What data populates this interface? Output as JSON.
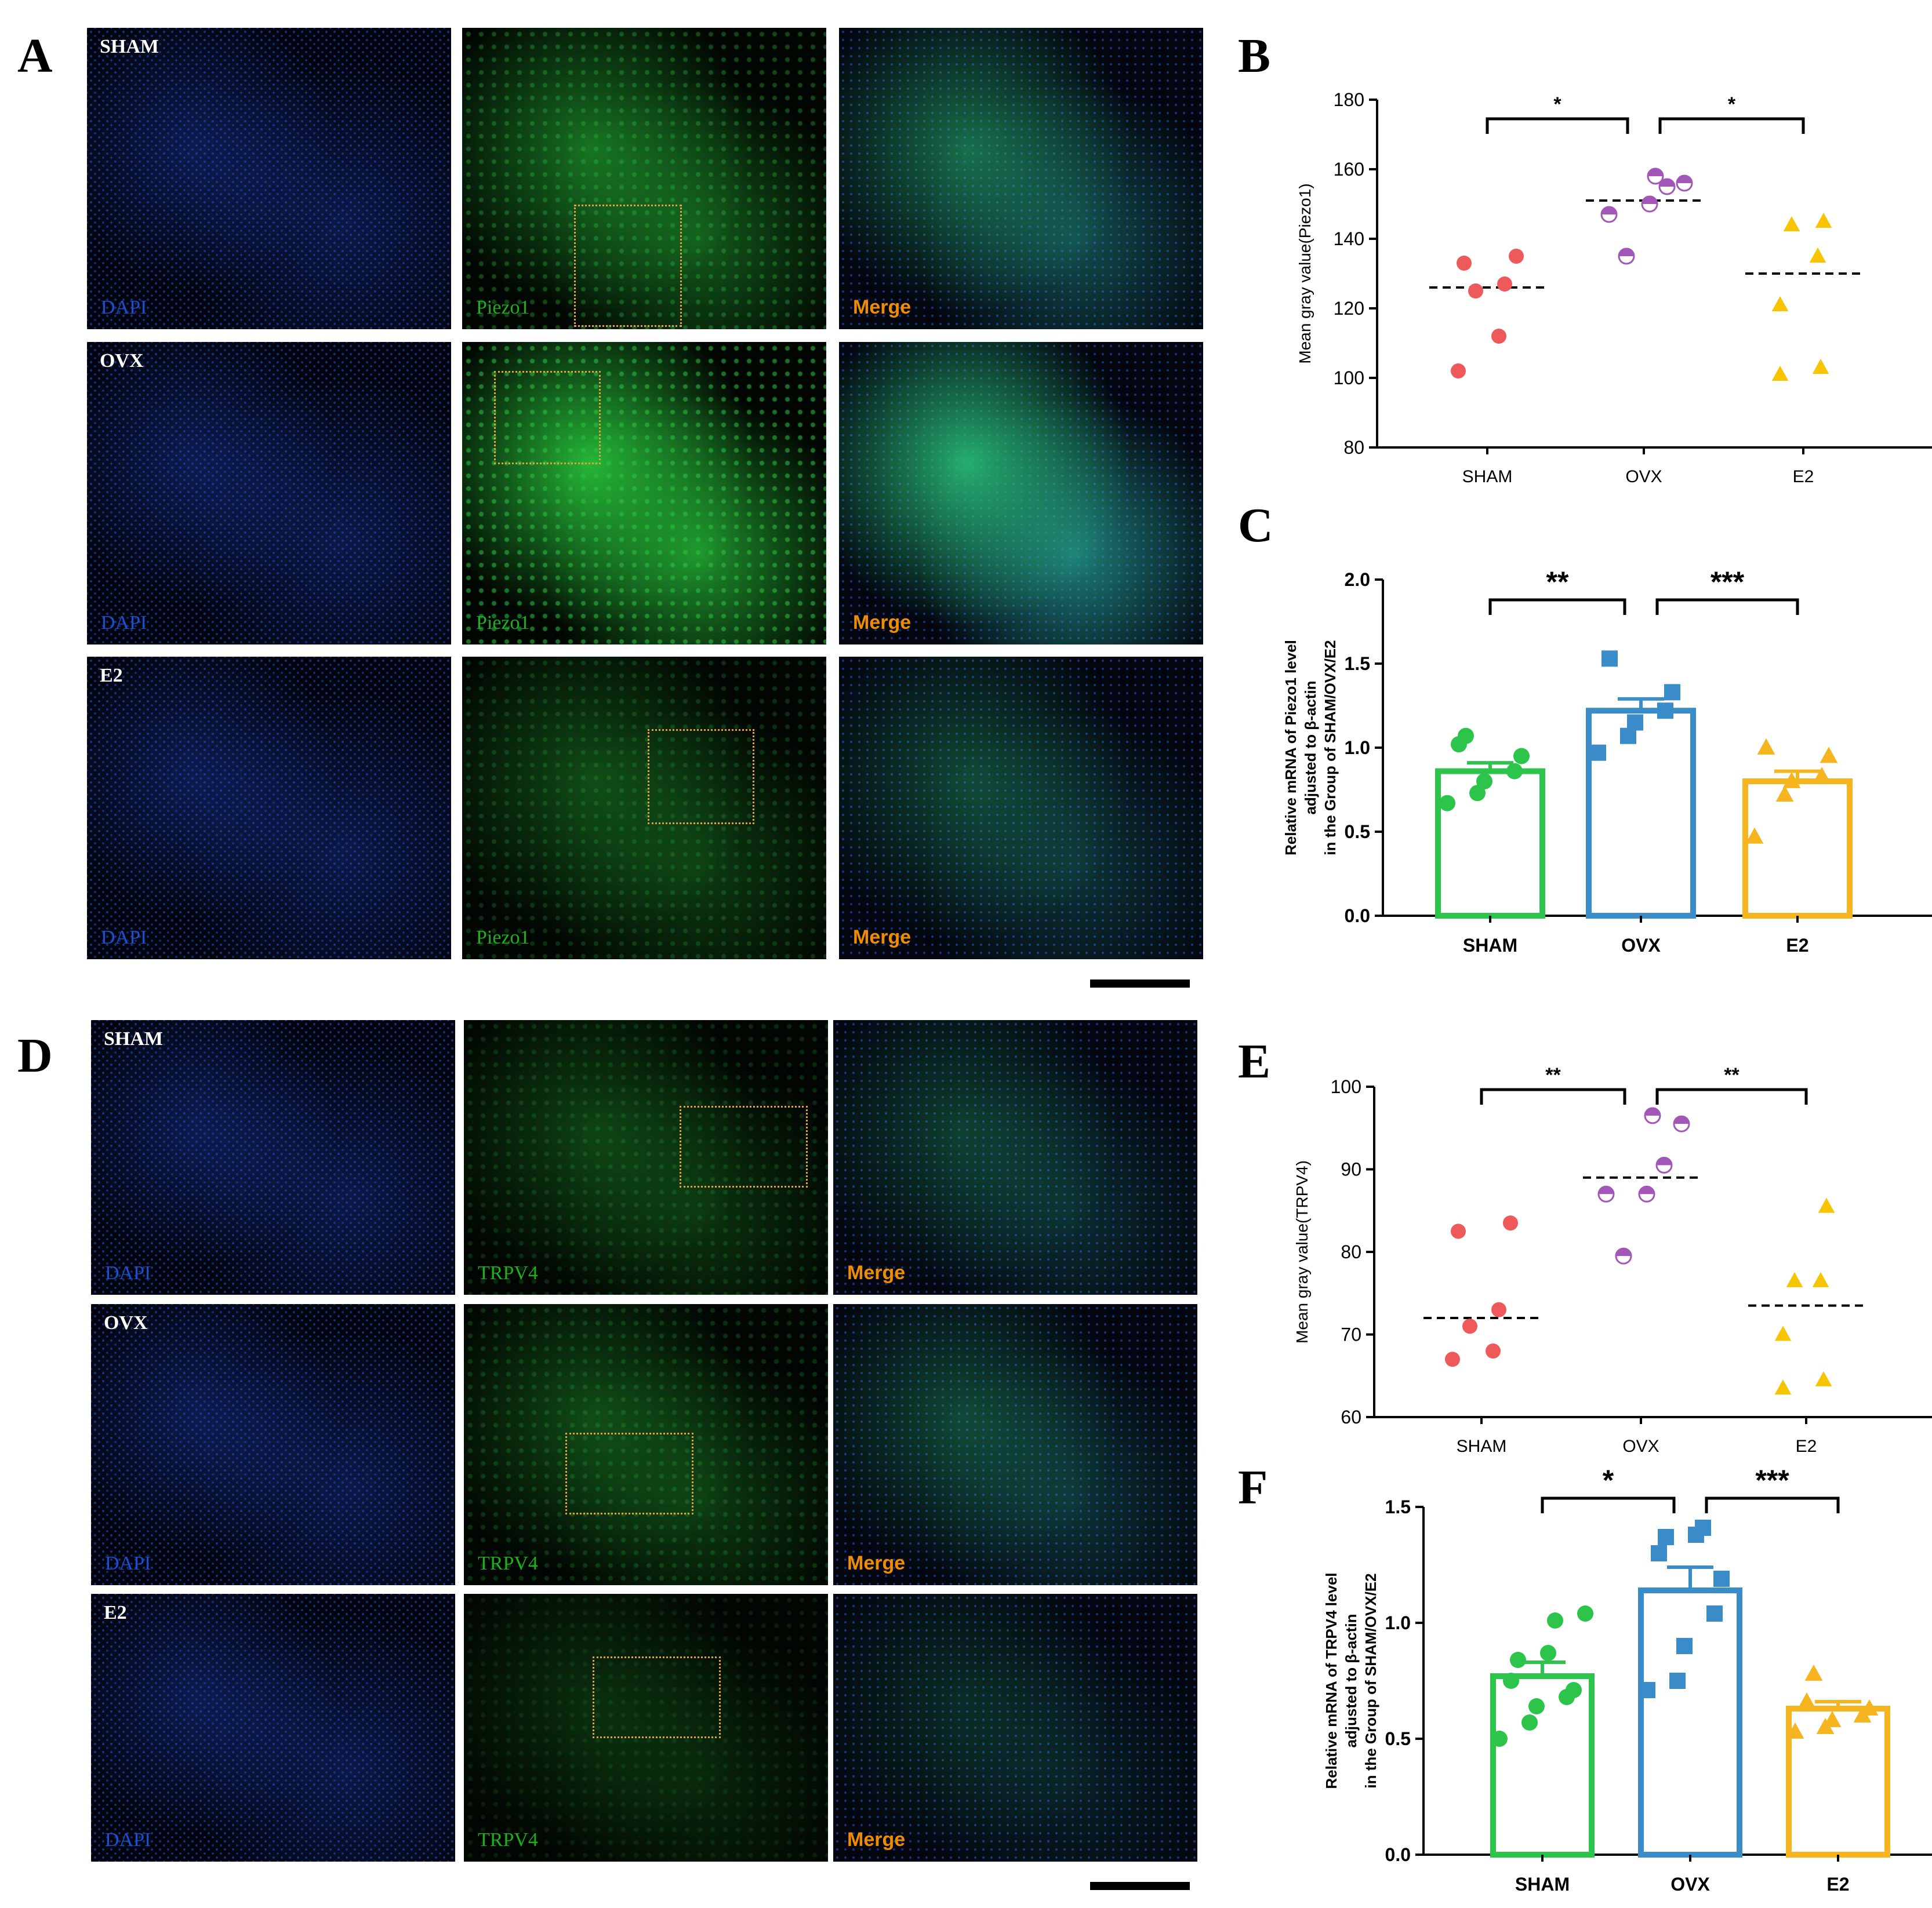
{
  "panel_labels": {
    "A": "A",
    "B": "B",
    "C": "C",
    "D": "D",
    "E": "E",
    "F": "F"
  },
  "colors": {
    "dapi": "#1a4fd0",
    "green": "#1db01d",
    "merge": "#f08c00",
    "sham_dot": "#ee5a5a",
    "ovx_dot": "#a156b8",
    "e2_dot": "#f6c500",
    "bar_sham": "#2cc44a",
    "bar_ovx": "#3a8dc8",
    "bar_e2": "#f6b41e",
    "roi": "#e8a13a"
  },
  "micrographs": {
    "piezo": {
      "rows": [
        {
          "group": "SHAM",
          "dapi": "DAPI",
          "marker": "Piezo1",
          "merge": "Merge"
        },
        {
          "group": "OVX",
          "dapi": "DAPI",
          "marker": "Piezo1",
          "merge": "Merge"
        },
        {
          "group": "E2",
          "dapi": "DAPI",
          "marker": "Piezo1",
          "merge": "Merge"
        }
      ]
    },
    "trpv4": {
      "rows": [
        {
          "group": "SHAM",
          "dapi": "DAPI",
          "marker": "TRPV4",
          "merge": "Merge"
        },
        {
          "group": "OVX",
          "dapi": "DAPI",
          "marker": "TRPV4",
          "merge": "Merge"
        },
        {
          "group": "E2",
          "dapi": "DAPI",
          "marker": "TRPV4",
          "merge": "Merge"
        }
      ]
    }
  },
  "chart_data": [
    {
      "id": "B",
      "type": "scatter",
      "ylabel": "Mean gray value(Piezo1)",
      "categories": [
        "SHAM",
        "OVX",
        "E2"
      ],
      "ylim": [
        80,
        180
      ],
      "yticks": [
        80,
        100,
        120,
        140,
        160,
        180
      ],
      "series": [
        {
          "values": [
            102,
            112,
            125,
            127,
            133,
            135
          ],
          "mean": 126
        },
        {
          "values": [
            135,
            147,
            150,
            155,
            156,
            158
          ],
          "mean": 151
        },
        {
          "values": [
            101,
            103,
            121,
            135,
            144,
            145
          ],
          "mean": 130
        }
      ],
      "significance": [
        {
          "from": 0,
          "to": 1,
          "label": "*"
        },
        {
          "from": 1,
          "to": 2,
          "label": "*"
        }
      ]
    },
    {
      "id": "C",
      "type": "bar",
      "ylabel": [
        "Relative mRNA of  Piezo1 level",
        "adjusted to β-actin",
        "in the Group of SHAM/OVX/E2"
      ],
      "categories": [
        "SHAM",
        "OVX",
        "E2"
      ],
      "ylim": [
        0,
        2.0
      ],
      "yticks": [
        "0.0",
        "0.5",
        "1.0",
        "1.5",
        "2.0"
      ],
      "values": [
        0.86,
        1.22,
        0.8
      ],
      "sem": [
        0.05,
        0.07,
        0.06
      ],
      "points": [
        [
          0.67,
          0.73,
          0.8,
          0.86,
          0.95,
          1.02,
          1.07
        ],
        [
          0.97,
          1.07,
          1.15,
          1.22,
          1.33,
          1.53
        ],
        [
          0.47,
          0.72,
          0.8,
          0.83,
          0.95,
          1.0
        ]
      ],
      "markers": [
        "circle",
        "square",
        "triangle"
      ],
      "significance": [
        {
          "from": 0,
          "to": 1,
          "label": "**"
        },
        {
          "from": 1,
          "to": 2,
          "label": "***"
        }
      ]
    },
    {
      "id": "E",
      "type": "scatter",
      "ylabel": "Mean gray value(TRPV4)",
      "categories": [
        "SHAM",
        "OVX",
        "E2"
      ],
      "ylim": [
        60,
        100
      ],
      "yticks": [
        60,
        70,
        80,
        90,
        100
      ],
      "series": [
        {
          "values": [
            67,
            68,
            71,
            73,
            82.5,
            83.5
          ],
          "mean": 72
        },
        {
          "values": [
            79.5,
            87,
            87,
            90.5,
            95.5,
            96.5
          ],
          "mean": 89
        },
        {
          "values": [
            63.5,
            64.5,
            70,
            76.5,
            76.5,
            85.5
          ],
          "mean": 73.5
        }
      ],
      "significance": [
        {
          "from": 0,
          "to": 1,
          "label": "**"
        },
        {
          "from": 1,
          "to": 2,
          "label": "**"
        }
      ]
    },
    {
      "id": "F",
      "type": "bar",
      "ylabel": [
        "Relative mRNA of  TRPV4 level",
        "adjusted to β-actin",
        "in the Group of SHAM/OVX/E2"
      ],
      "categories": [
        "SHAM",
        "OVX",
        "E2"
      ],
      "ylim": [
        0,
        1.5
      ],
      "yticks": [
        "0.0",
        "0.5",
        "1.0",
        "1.5"
      ],
      "values": [
        0.77,
        1.14,
        0.63
      ],
      "sem": [
        0.06,
        0.1,
        0.03
      ],
      "points": [
        [
          0.5,
          0.57,
          0.64,
          0.68,
          0.71,
          0.75,
          0.84,
          0.87,
          1.01,
          1.04
        ],
        [
          0.71,
          0.75,
          0.9,
          1.04,
          1.19,
          1.3,
          1.37,
          1.38,
          1.41
        ],
        [
          0.53,
          0.55,
          0.58,
          0.6,
          0.63,
          0.66,
          0.78
        ]
      ],
      "markers": [
        "circle",
        "square",
        "triangle"
      ],
      "significance": [
        {
          "from": 0,
          "to": 1,
          "label": "*"
        },
        {
          "from": 1,
          "to": 2,
          "label": "***"
        }
      ]
    }
  ]
}
